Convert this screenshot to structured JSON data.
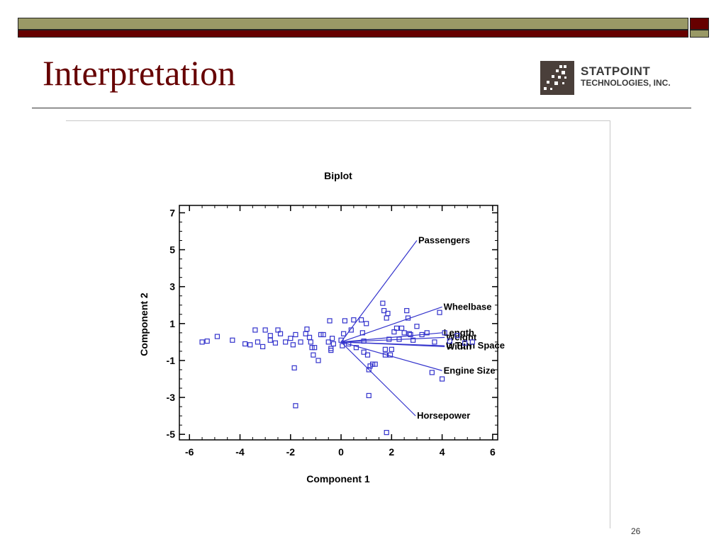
{
  "slide": {
    "title": "Interpretation",
    "number": "26"
  },
  "logo": {
    "line1": "STATPOINT",
    "line2": "TECHNOLOGIES, INC.",
    "icon": "scattered-dots-logo-icon"
  },
  "colors": {
    "title": "#660000",
    "bar_olive": "#999966",
    "bar_maroon": "#660000",
    "plot": "#3333cc"
  },
  "chart_data": {
    "type": "scatter",
    "title": "Biplot",
    "xlabel": "Component 1",
    "ylabel": "Component 2",
    "xlim": [
      -6.4,
      6.2
    ],
    "ylim": [
      -5.3,
      7.4
    ],
    "xticks": [
      -6,
      -4,
      -2,
      0,
      2,
      4,
      6
    ],
    "yticks": [
      -5,
      -3,
      -1,
      1,
      3,
      5,
      7
    ],
    "grid": false,
    "points": [
      [
        -5.5,
        0.0
      ],
      [
        -5.3,
        0.05
      ],
      [
        -4.9,
        0.3
      ],
      [
        -4.3,
        0.1
      ],
      [
        -3.8,
        -0.1
      ],
      [
        -3.6,
        -0.15
      ],
      [
        -3.4,
        0.65
      ],
      [
        -3.3,
        0.0
      ],
      [
        -3.1,
        -0.25
      ],
      [
        -3.0,
        0.65
      ],
      [
        -2.8,
        0.35
      ],
      [
        -2.8,
        0.1
      ],
      [
        -2.6,
        -0.05
      ],
      [
        -2.5,
        0.65
      ],
      [
        -2.4,
        0.45
      ],
      [
        -2.2,
        0.0
      ],
      [
        -2.0,
        0.2
      ],
      [
        -1.9,
        -0.15
      ],
      [
        -1.8,
        0.4
      ],
      [
        -1.85,
        -1.4
      ],
      [
        -1.8,
        -3.45
      ],
      [
        -1.6,
        0.0
      ],
      [
        -1.4,
        0.45
      ],
      [
        -1.35,
        0.7
      ],
      [
        -1.25,
        0.25
      ],
      [
        -1.2,
        0.0
      ],
      [
        -1.15,
        -0.3
      ],
      [
        -1.1,
        -0.7
      ],
      [
        -1.05,
        -0.3
      ],
      [
        -0.9,
        -1.0
      ],
      [
        -0.8,
        0.4
      ],
      [
        -0.7,
        0.4
      ],
      [
        -0.5,
        0.0
      ],
      [
        -0.45,
        1.15
      ],
      [
        -0.4,
        -0.35
      ],
      [
        -0.4,
        -0.45
      ],
      [
        -0.35,
        0.2
      ],
      [
        -0.3,
        -0.1
      ],
      [
        0.0,
        0.1
      ],
      [
        0.05,
        -0.2
      ],
      [
        0.1,
        0.45
      ],
      [
        0.15,
        1.15
      ],
      [
        0.3,
        -0.1
      ],
      [
        0.4,
        0.65
      ],
      [
        0.5,
        1.2
      ],
      [
        0.6,
        -0.3
      ],
      [
        0.8,
        1.2
      ],
      [
        0.85,
        0.5
      ],
      [
        0.9,
        0.05
      ],
      [
        0.9,
        -0.55
      ],
      [
        1.0,
        1.0
      ],
      [
        1.05,
        -0.7
      ],
      [
        1.1,
        -1.5
      ],
      [
        1.1,
        -2.9
      ],
      [
        1.15,
        -1.3
      ],
      [
        1.25,
        -1.2
      ],
      [
        1.35,
        -1.2
      ],
      [
        1.65,
        2.1
      ],
      [
        1.7,
        1.7
      ],
      [
        1.75,
        -0.4
      ],
      [
        1.75,
        -0.7
      ],
      [
        1.8,
        1.3
      ],
      [
        1.85,
        1.55
      ],
      [
        1.8,
        -4.9
      ],
      [
        1.9,
        0.15
      ],
      [
        1.95,
        -0.7
      ],
      [
        2.0,
        -0.4
      ],
      [
        2.1,
        0.55
      ],
      [
        2.2,
        0.75
      ],
      [
        2.3,
        0.15
      ],
      [
        2.4,
        0.75
      ],
      [
        2.5,
        0.5
      ],
      [
        2.6,
        1.7
      ],
      [
        2.65,
        1.3
      ],
      [
        2.7,
        0.45
      ],
      [
        2.75,
        0.4
      ],
      [
        2.85,
        0.1
      ],
      [
        3.0,
        0.85
      ],
      [
        3.2,
        0.4
      ],
      [
        3.4,
        0.5
      ],
      [
        3.6,
        -1.65
      ],
      [
        3.7,
        0.0
      ],
      [
        3.9,
        1.6
      ],
      [
        4.0,
        -2.0
      ],
      [
        4.1,
        0.5
      ],
      [
        4.3,
        0.05
      ],
      [
        4.6,
        0.35
      ],
      [
        4.9,
        -0.05
      ],
      [
        5.2,
        0.0
      ]
    ],
    "vectors": [
      {
        "name": "Passengers",
        "x": 3.0,
        "y": 5.5
      },
      {
        "name": "Wheelbase",
        "x": 4.0,
        "y": 1.9
      },
      {
        "name": "Length",
        "x": 4.0,
        "y": 0.5
      },
      {
        "name": "Weight",
        "x": 4.1,
        "y": 0.25
      },
      {
        "name": "U Turn Space",
        "x": 4.1,
        "y": -0.2
      },
      {
        "name": "Width",
        "x": 4.1,
        "y": -0.25
      },
      {
        "name": "Engine Size",
        "x": 4.0,
        "y": -1.55
      },
      {
        "name": "Horsepower",
        "x": 2.95,
        "y": -4.0
      }
    ]
  }
}
